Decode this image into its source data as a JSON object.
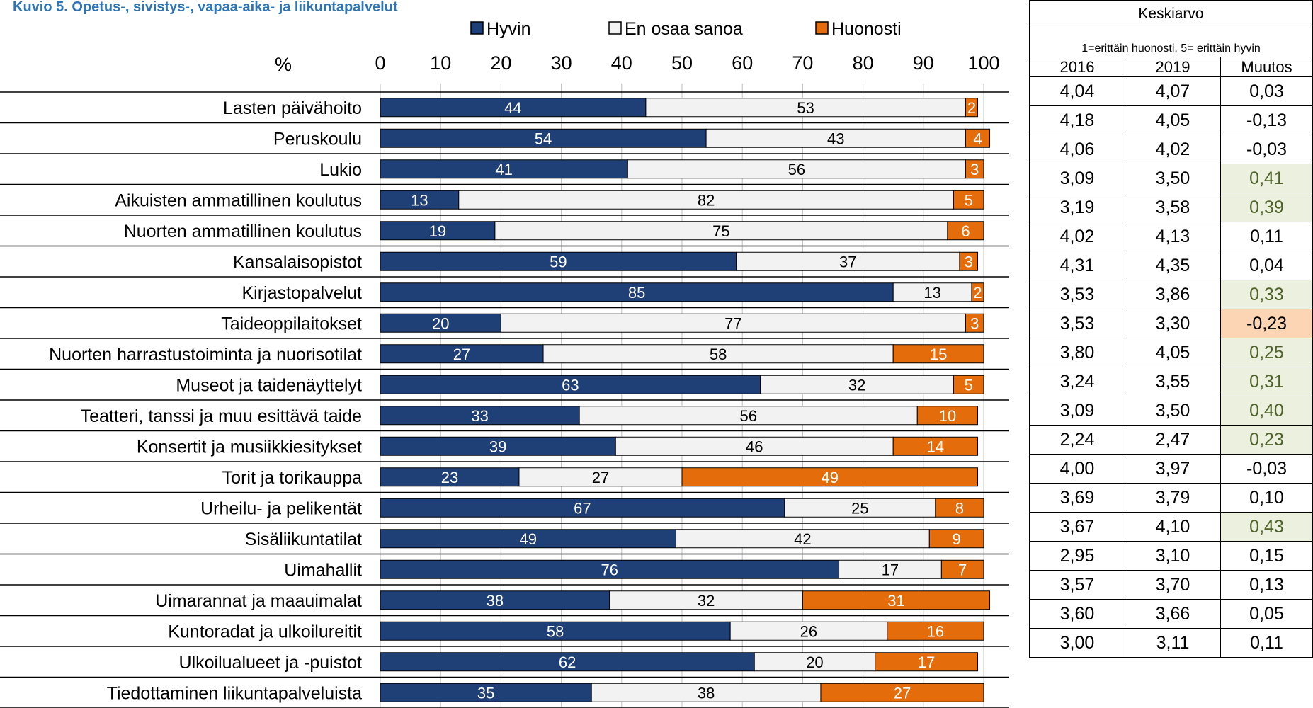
{
  "title": "Kuvio 5. Opetus-, sivistys-, vapaa-aika- ja liikuntapalvelut",
  "chart_data": {
    "type": "bar",
    "orientation": "horizontal",
    "stacked": true,
    "xlabel": "%",
    "xlim": [
      0,
      100
    ],
    "xticks": [
      0,
      10,
      20,
      30,
      40,
      50,
      60,
      70,
      80,
      90,
      100
    ],
    "legend_position": "top",
    "categories": [
      "Lasten päivähoito",
      "Peruskoulu",
      "Lukio",
      "Aikuisten ammatillinen koulutus",
      "Nuorten ammatillinen koulutus",
      "Kansalaisopistot",
      "Kirjastopalvelut",
      "Taideoppilaitokset",
      "Nuorten harrastustoiminta ja nuorisotilat",
      "Museot ja taidenäyttelyt",
      "Teatteri, tanssi ja muu esittävä taide",
      "Konsertit ja musiikkiesitykset",
      "Torit ja torikauppa",
      "Urheilu- ja pelikentät",
      "Sisäliikuntatilat",
      "Uimahallit",
      "Uimarannat ja maauimalat",
      "Kuntoradat ja ulkoilureitit",
      "Ulkoilualueet ja -puistot",
      "Tiedottaminen liikuntapalveluista"
    ],
    "series": [
      {
        "name": "Hyvin",
        "color": "#1f3f77",
        "values": [
          44,
          54,
          41,
          13,
          19,
          59,
          85,
          20,
          27,
          63,
          33,
          39,
          23,
          67,
          49,
          76,
          38,
          58,
          62,
          35
        ]
      },
      {
        "name": "En osaa sanoa",
        "color": "#f2f2f2",
        "values": [
          53,
          43,
          56,
          82,
          75,
          37,
          13,
          77,
          58,
          32,
          56,
          46,
          27,
          25,
          42,
          17,
          32,
          26,
          20,
          38
        ]
      },
      {
        "name": "Huonosti",
        "color": "#e46c0a",
        "values": [
          2,
          4,
          3,
          5,
          6,
          3,
          2,
          3,
          15,
          5,
          10,
          14,
          49,
          8,
          9,
          7,
          31,
          16,
          17,
          27
        ]
      }
    ]
  },
  "mean_table": {
    "header": "Keskiarvo",
    "subheader": "1=erittäin huonosti, 5= erittäin hyvin",
    "columns": [
      "2016",
      "2019",
      "Muutos"
    ],
    "rows": [
      {
        "y2016": "4,04",
        "y2019": "4,07",
        "change": "0,03",
        "highlight": "none"
      },
      {
        "y2016": "4,18",
        "y2019": "4,05",
        "change": "-0,13",
        "highlight": "none"
      },
      {
        "y2016": "4,06",
        "y2019": "4,02",
        "change": "-0,03",
        "highlight": "none"
      },
      {
        "y2016": "3,09",
        "y2019": "3,50",
        "change": "0,41",
        "highlight": "positive"
      },
      {
        "y2016": "3,19",
        "y2019": "3,58",
        "change": "0,39",
        "highlight": "positive"
      },
      {
        "y2016": "4,02",
        "y2019": "4,13",
        "change": "0,11",
        "highlight": "none"
      },
      {
        "y2016": "4,31",
        "y2019": "4,35",
        "change": "0,04",
        "highlight": "none"
      },
      {
        "y2016": "3,53",
        "y2019": "3,86",
        "change": "0,33",
        "highlight": "positive"
      },
      {
        "y2016": "3,53",
        "y2019": "3,30",
        "change": "-0,23",
        "highlight": "negative"
      },
      {
        "y2016": "3,80",
        "y2019": "4,05",
        "change": "0,25",
        "highlight": "positive"
      },
      {
        "y2016": "3,24",
        "y2019": "3,55",
        "change": "0,31",
        "highlight": "positive"
      },
      {
        "y2016": "3,09",
        "y2019": "3,50",
        "change": "0,40",
        "highlight": "positive"
      },
      {
        "y2016": "2,24",
        "y2019": "2,47",
        "change": "0,23",
        "highlight": "positive"
      },
      {
        "y2016": "4,00",
        "y2019": "3,97",
        "change": "-0,03",
        "highlight": "none"
      },
      {
        "y2016": "3,69",
        "y2019": "3,79",
        "change": "0,10",
        "highlight": "none"
      },
      {
        "y2016": "3,67",
        "y2019": "4,10",
        "change": "0,43",
        "highlight": "positive"
      },
      {
        "y2016": "2,95",
        "y2019": "3,10",
        "change": "0,15",
        "highlight": "none"
      },
      {
        "y2016": "3,57",
        "y2019": "3,70",
        "change": "0,13",
        "highlight": "none"
      },
      {
        "y2016": "3,60",
        "y2019": "3,66",
        "change": "0,05",
        "highlight": "none"
      },
      {
        "y2016": "3,00",
        "y2019": "3,11",
        "change": "0,11",
        "highlight": "none"
      }
    ]
  },
  "colors": {
    "title": "#2e75b6",
    "positive_bg": "#ebf1de",
    "positive_text": "#4f6228",
    "negative_bg": "#fcd5b4"
  }
}
